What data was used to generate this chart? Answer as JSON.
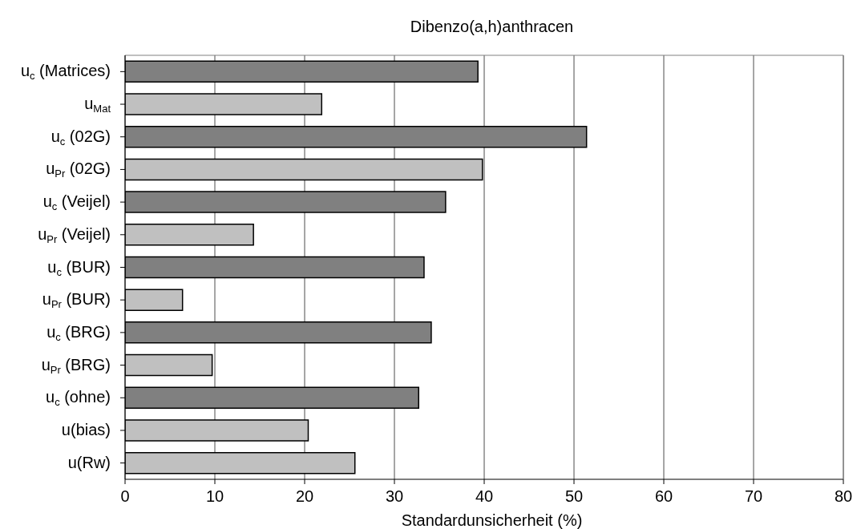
{
  "chart_data": {
    "type": "bar",
    "orientation": "horizontal",
    "title": "Dibenzo(a,h)anthracen",
    "xlabel": "Standardunsicherheit (%)",
    "categories": [
      "u$_{c}$ (Matrices)",
      "u$_{Mat}$",
      "u$_{c}$ (02G)",
      "u$_{Pr}$ (02G)",
      "u$_{c}$ (Veijel)",
      "u$_{Pr}$ (Veijel)",
      "u$_{c}$ (BUR)",
      "u$_{Pr}$ (BUR)",
      "u$_{c}$ (BRG)",
      "u$_{Pr}$ (BRG)",
      "u$_{c}$ (ohne)",
      "u(bias)",
      "u(Rw)"
    ],
    "values": [
      39.3,
      21.9,
      51.4,
      39.8,
      35.7,
      14.3,
      33.3,
      6.4,
      34.1,
      9.7,
      32.7,
      20.4,
      25.6
    ],
    "colors": [
      "#808080",
      "#c0c0c0",
      "#808080",
      "#c0c0c0",
      "#808080",
      "#c0c0c0",
      "#808080",
      "#c0c0c0",
      "#808080",
      "#c0c0c0",
      "#808080",
      "#c0c0c0",
      "#c0c0c0"
    ],
    "xlim": [
      0,
      80
    ],
    "xticks": [
      0,
      10,
      20,
      30,
      40,
      50,
      60,
      70,
      80
    ],
    "grid": "x"
  }
}
